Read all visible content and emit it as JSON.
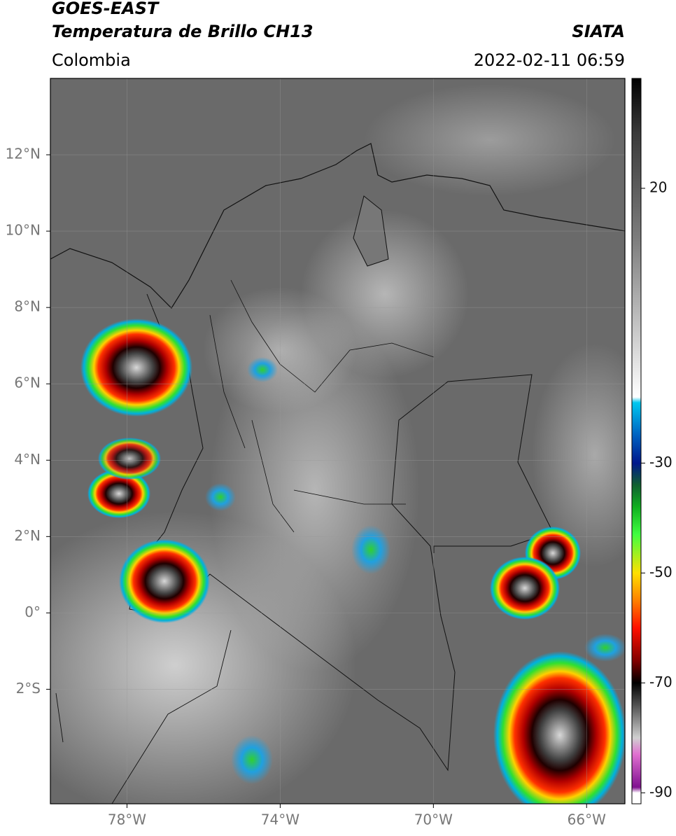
{
  "chart_data": {
    "type": "map",
    "title": "GOES-EAST",
    "subtitle": "Temperatura de Brillo CH13",
    "source": "SIATA",
    "region": "Colombia",
    "datetime": "2022-02-11 06:59",
    "xlim": [
      -80,
      -65
    ],
    "ylim": [
      -5,
      14
    ],
    "xticks": [
      {
        "value": -78,
        "label": "78°W"
      },
      {
        "value": -74,
        "label": "74°W"
      },
      {
        "value": -70,
        "label": "70°W"
      },
      {
        "value": -66,
        "label": "66°W"
      }
    ],
    "yticks": [
      {
        "value": 12,
        "label": "12°N"
      },
      {
        "value": 10,
        "label": "10°N"
      },
      {
        "value": 8,
        "label": "8°N"
      },
      {
        "value": 6,
        "label": "6°N"
      },
      {
        "value": 4,
        "label": "4°N"
      },
      {
        "value": 2,
        "label": "2°N"
      },
      {
        "value": 0,
        "label": "0°"
      },
      {
        "value": -2,
        "label": "2°S"
      }
    ],
    "grid": true,
    "colorbar": {
      "lim": [
        -92,
        40
      ],
      "ticks": [
        20,
        -30,
        -50,
        -70,
        -90
      ],
      "colorscale": [
        [
          40,
          "#000000"
        ],
        [
          30,
          "#3a3a3a"
        ],
        [
          10,
          "#808080"
        ],
        [
          -18,
          "#ffffff"
        ],
        [
          -19,
          "#00c8f0"
        ],
        [
          -25,
          "#0060c0"
        ],
        [
          -30,
          "#00188c"
        ],
        [
          -34,
          "#106030"
        ],
        [
          -38,
          "#10b020"
        ],
        [
          -43,
          "#40ff40"
        ],
        [
          -50,
          "#ffe000"
        ],
        [
          -55,
          "#ff8000"
        ],
        [
          -60,
          "#ff1000"
        ],
        [
          -66,
          "#800000"
        ],
        [
          -70,
          "#000000"
        ],
        [
          -74,
          "#505050"
        ],
        [
          -80,
          "#d0d0d0"
        ],
        [
          -83,
          "#e070d0"
        ],
        [
          -89,
          "#801090"
        ],
        [
          -90,
          "#ffffff"
        ],
        [
          -92,
          "#ffffff"
        ]
      ]
    }
  }
}
